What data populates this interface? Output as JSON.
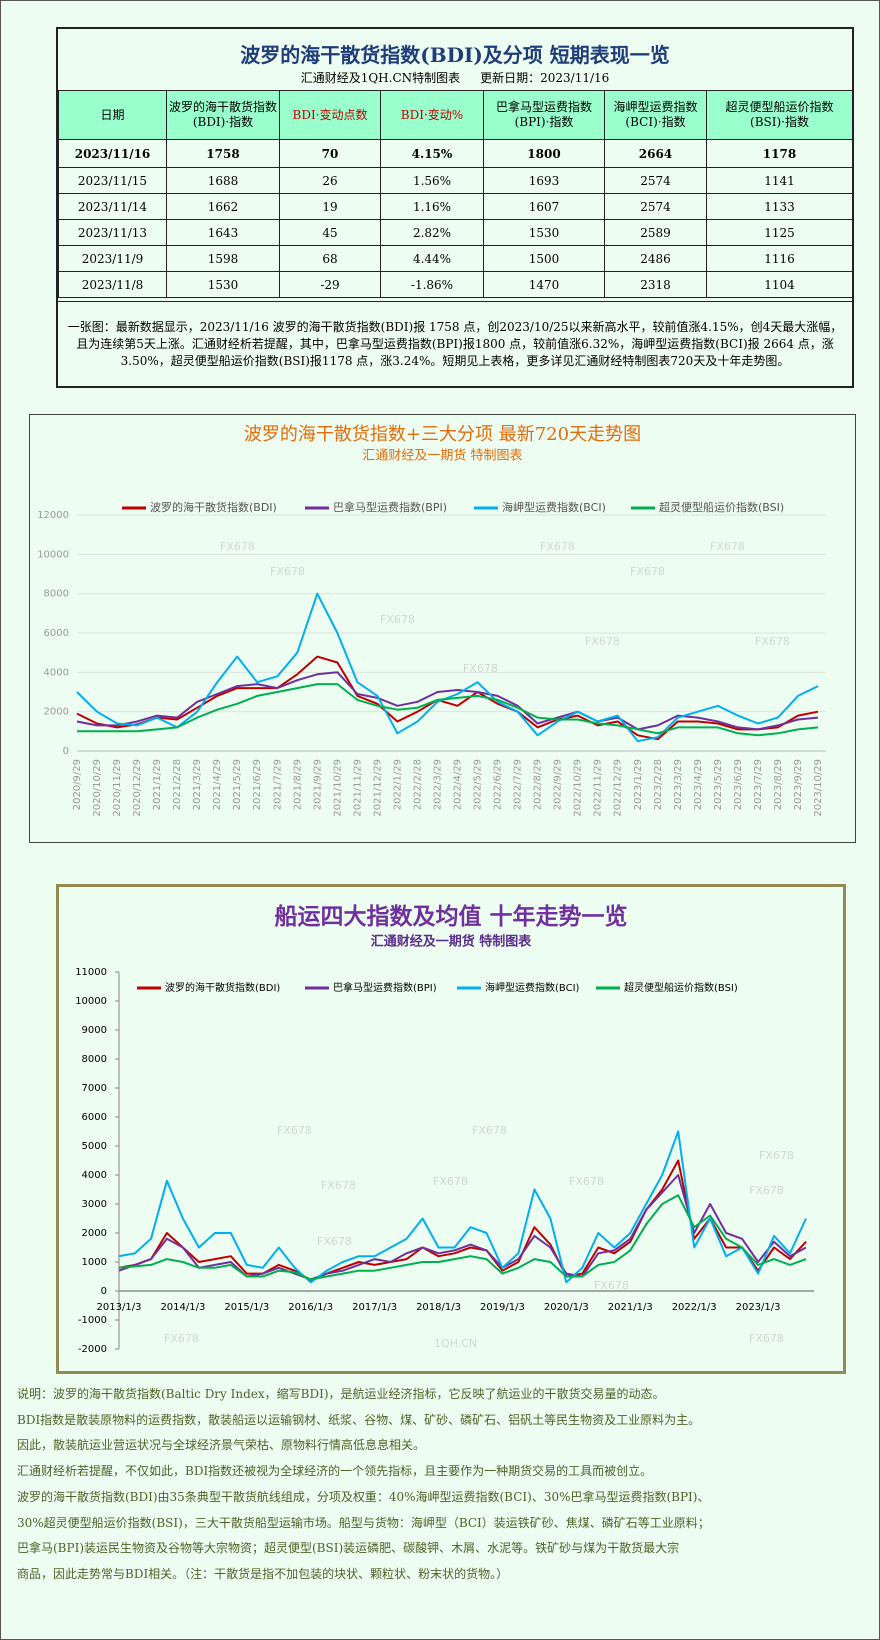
{
  "header": {
    "title": "波罗的海干散货指数(BDI)及分项  短期表现一览",
    "subtitle": "汇通财经及1QH.CN特制图表",
    "updated": "更新日期：2023/11/16"
  },
  "table": {
    "columns": [
      "日期",
      "波罗的海干散货指数(BDI)·指数",
      "BDI·变动点数",
      "BDI·变动%",
      "巴拿马型运费指数(BPI)·指数",
      "海岬型运费指数(BCI)·指数",
      "超灵便型船运价指数(BSI)·指数"
    ],
    "rows": [
      [
        "2023/11/16",
        "1758",
        "70",
        "4.15%",
        "1800",
        "2664",
        "1178"
      ],
      [
        "2023/11/15",
        "1688",
        "26",
        "1.56%",
        "1693",
        "2574",
        "1141"
      ],
      [
        "2023/11/14",
        "1662",
        "19",
        "1.16%",
        "1607",
        "2574",
        "1133"
      ],
      [
        "2023/11/13",
        "1643",
        "45",
        "2.82%",
        "1530",
        "2589",
        "1125"
      ],
      [
        "2023/11/9",
        "1598",
        "68",
        "4.44%",
        "1500",
        "2486",
        "1116"
      ],
      [
        "2023/11/8",
        "1530",
        "-29",
        "-1.86%",
        "1470",
        "2318",
        "1104"
      ]
    ]
  },
  "summary": "一张图：最新数据显示，2023/11/16 波罗的海干散货指数(BDI)报 1758 点，创2023/10/25以来新高水平，较前值涨4.15%，创4天最大涨幅，且为连续第5天上涨。汇通财经析若提醒，其中，巴拿马型运费指数(BPI)报1800 点，较前值涨6.32%，海岬型运费指数(BCI)报 2664 点，涨3.50%，超灵便型船运价指数(BSI)报1178 点，涨3.24%。短期见上表格，更多详见汇通财经特制图表720天及十年走势图。",
  "chart_data": [
    {
      "type": "line",
      "title": "波罗的海干散货指数+三大分项  最新720天走势图",
      "subtitle": "汇通财经及一期货  特制图表",
      "categories": [
        "2020/9/29",
        "2020/10/29",
        "2020/11/29",
        "2020/12/29",
        "2021/1/29",
        "2021/2/28",
        "2021/3/29",
        "2021/4/29",
        "2021/5/29",
        "2021/6/29",
        "2021/7/29",
        "2021/8/29",
        "2021/9/29",
        "2021/10/29",
        "2021/11/29",
        "2021/12/29",
        "2022/1/29",
        "2022/2/28",
        "2022/3/29",
        "2022/4/29",
        "2022/5/29",
        "2022/6/29",
        "2022/7/29",
        "2022/8/29",
        "2022/9/29",
        "2022/10/29",
        "2022/11/29",
        "2022/12/29",
        "2023/1/29",
        "2023/2/28",
        "2023/3/29",
        "2023/4/29",
        "2023/5/29",
        "2023/6/29",
        "2023/7/29",
        "2023/8/29",
        "2023/9/29",
        "2023/10/29"
      ],
      "series": [
        {
          "name": "波罗的海干散货指数(BDI)",
          "color": "#c00000",
          "values": [
            1900,
            1400,
            1200,
            1350,
            1700,
            1600,
            2200,
            2800,
            3200,
            3200,
            3200,
            3900,
            4800,
            4500,
            2800,
            2400,
            1500,
            2000,
            2600,
            2300,
            3000,
            2400,
            2000,
            1200,
            1600,
            1800,
            1300,
            1500,
            800,
            600,
            1500,
            1500,
            1400,
            1100,
            1100,
            1200,
            1800,
            2000
          ]
        },
        {
          "name": "巴拿马型运费指数(BPI)",
          "color": "#7030a0",
          "values": [
            1500,
            1300,
            1300,
            1500,
            1800,
            1700,
            2500,
            2900,
            3300,
            3400,
            3200,
            3600,
            3900,
            4000,
            2900,
            2700,
            2300,
            2500,
            3000,
            3100,
            3000,
            2800,
            2300,
            1400,
            1700,
            2000,
            1500,
            1700,
            1100,
            1300,
            1800,
            1700,
            1500,
            1200,
            1100,
            1300,
            1600,
            1700
          ]
        },
        {
          "name": "海岬型运费指数(BCI)",
          "color": "#00b0f0",
          "values": [
            3000,
            2000,
            1400,
            1300,
            1700,
            1200,
            2000,
            3500,
            4800,
            3500,
            3800,
            5000,
            8000,
            6000,
            3500,
            2800,
            900,
            1500,
            2500,
            2900,
            3500,
            2500,
            2000,
            800,
            1500,
            2000,
            1500,
            1800,
            500,
            700,
            1700,
            2000,
            2300,
            1800,
            1400,
            1700,
            2800,
            3300
          ]
        },
        {
          "name": "超灵便型船运价指数(BSI)",
          "color": "#00b050",
          "values": [
            1000,
            1000,
            1000,
            1000,
            1100,
            1200,
            1700,
            2100,
            2400,
            2800,
            3000,
            3200,
            3400,
            3400,
            2600,
            2300,
            2100,
            2200,
            2600,
            2700,
            2800,
            2600,
            2200,
            1700,
            1600,
            1600,
            1400,
            1300,
            1100,
            900,
            1200,
            1200,
            1200,
            900,
            800,
            900,
            1100,
            1200
          ]
        }
      ],
      "ylim": [
        0,
        12000
      ],
      "yticks": [
        0,
        2000,
        4000,
        6000,
        8000,
        10000,
        12000
      ],
      "grid": true,
      "legend": "top",
      "watermark": "FX678"
    },
    {
      "type": "line",
      "title": "船运四大指数及均值 十年走势一览",
      "subtitle": "汇通财经及一期货 特制图表",
      "categories": [
        "2013/1/3",
        null,
        null,
        null,
        "2014/1/3",
        null,
        null,
        null,
        "2015/1/3",
        null,
        null,
        null,
        "2016/1/3",
        null,
        null,
        null,
        "2017/1/3",
        null,
        null,
        null,
        "2018/1/3",
        null,
        null,
        null,
        "2019/1/3",
        null,
        null,
        null,
        "2020/1/3",
        null,
        null,
        null,
        "2021/1/3",
        null,
        null,
        null,
        "2022/1/3",
        null,
        null,
        null,
        "2023/1/3",
        null,
        null,
        null
      ],
      "series": [
        {
          "name": "波罗的海干散货指数(BDI)",
          "color": "#c00000",
          "values": [
            800,
            900,
            1100,
            2000,
            1500,
            1000,
            1100,
            1200,
            600,
            600,
            900,
            700,
            350,
            600,
            800,
            1000,
            900,
            1000,
            1100,
            1500,
            1200,
            1300,
            1500,
            1400,
            700,
            1000,
            2200,
            1600,
            500,
            600,
            1500,
            1300,
            1700,
            2800,
            3500,
            4500,
            1800,
            2500,
            1500,
            1500,
            700,
            1500,
            1100,
            1700
          ]
        },
        {
          "name": "巴拿马型运费指数(BPI)",
          "color": "#7030a0",
          "values": [
            700,
            900,
            1100,
            1800,
            1500,
            800,
            900,
            1000,
            500,
            600,
            800,
            600,
            400,
            600,
            700,
            900,
            1100,
            1000,
            1300,
            1500,
            1300,
            1400,
            1600,
            1400,
            800,
            1100,
            1900,
            1500,
            600,
            500,
            1300,
            1400,
            1800,
            2800,
            3400,
            4000,
            2000,
            3000,
            2000,
            1800,
            1000,
            1700,
            1200,
            1500
          ]
        },
        {
          "name": "海岬型运费指数(BCI)",
          "color": "#00b0f0",
          "values": [
            1200,
            1300,
            1800,
            3800,
            2500,
            1500,
            2000,
            2000,
            900,
            800,
            1500,
            800,
            300,
            700,
            1000,
            1200,
            1200,
            1500,
            1800,
            2500,
            1500,
            1500,
            2200,
            2000,
            800,
            1300,
            3500,
            2500,
            300,
            800,
            2000,
            1500,
            2000,
            3000,
            4000,
            5500,
            1500,
            2500,
            1200,
            1500,
            600,
            1900,
            1300,
            2500
          ]
        },
        {
          "name": "超灵便型船运价指数(BSI)",
          "color": "#00b050",
          "values": [
            800,
            850,
            900,
            1100,
            1000,
            800,
            800,
            900,
            500,
            500,
            700,
            650,
            400,
            500,
            600,
            700,
            700,
            800,
            900,
            1000,
            1000,
            1100,
            1200,
            1100,
            600,
            800,
            1100,
            1000,
            500,
            500,
            900,
            1000,
            1400,
            2300,
            3000,
            3300,
            2200,
            2600,
            1800,
            1500,
            900,
            1100,
            900,
            1100
          ]
        }
      ],
      "ylim": [
        -2000,
        11000
      ],
      "yticks": [
        -2000,
        -1000,
        0,
        1000,
        2000,
        3000,
        4000,
        5000,
        6000,
        7000,
        8000,
        9000,
        10000,
        11000
      ],
      "grid": false,
      "legend": "top",
      "watermark": "FX678",
      "watermark2": "1QH.CN"
    }
  ],
  "notes": [
    "说明：波罗的海干散货指数(Baltic Dry Index，缩写BDI)，是航运业经济指标，它反映了航运业的干散货交易量的动态。",
    "BDI指数是散装原物料的运费指数，散装船运以运输钢材、纸浆、谷物、煤、矿砂、磷矿石、铝矾土等民生物资及工业原料为主。",
    "因此，散装航运业营运状况与全球经济景气荣枯、原物料行情高低息息相关。",
    "汇通财经析若提醒，不仅如此，BDI指数还被视为全球经济的一个领先指标，且主要作为一种期货交易的工具而被创立。",
    "波罗的海干散货指数(BDI)由35条典型干散货航线组成，分项及权重：40%海岬型运费指数(BCI)、30%巴拿马型运费指数(BPI)、",
    "30%超灵便型船运价指数(BSI)，三大干散货船型运输市场。船型与货物：海岬型（BCI）装运铁矿砂、焦煤、磷矿石等工业原料；",
    "巴拿马(BPI)装运民生物资及谷物等大宗物资；超灵便型(BSI)装运磷肥、碳酸钾、木屑、水泥等。铁矿砂与煤为干散货最大宗",
    "商品，因此走势常与BDI相关。（注：干散货是指不加包装的块状、颗粒状、粉末状的货物。）"
  ]
}
